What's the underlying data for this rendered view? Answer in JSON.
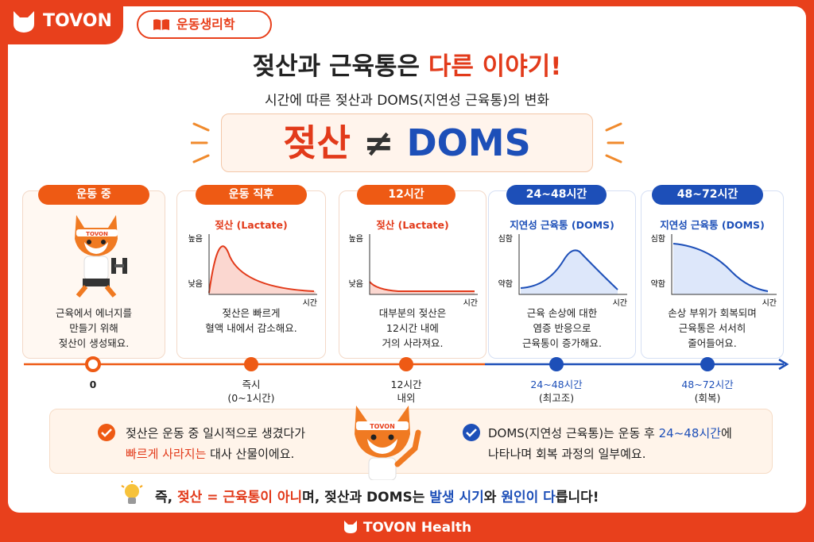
{
  "header": {
    "brand": "TOVON",
    "tag": "운동생리학"
  },
  "title": {
    "main": "젖산과 근육통은",
    "highlight": "다른 이야기!"
  },
  "subtitle": "시간에 따른 젖산과 DOMS(지연성 근육통)의 변화",
  "banner": {
    "left": "젖산",
    "symbol": "≠",
    "right": "DOMS"
  },
  "stages": [
    {
      "label": "운동 중",
      "description": [
        "근육에서 에너지를",
        "만들기 위해",
        "젖산이 생성돼요."
      ],
      "time": [
        "0"
      ]
    },
    {
      "label": "운동 직후",
      "chart_title": "젖산 (Lactate)",
      "y_labels": [
        "높음",
        "낮음"
      ],
      "x_label": "시간",
      "description": [
        "젖산은 빠르게",
        "혈액 내에서 감소해요."
      ],
      "time": [
        "즉시",
        "(0~1시간)"
      ]
    },
    {
      "label": "12시간",
      "chart_title": "젖산 (Lactate)",
      "y_labels": [
        "높음",
        "낮음"
      ],
      "x_label": "시간",
      "description": [
        "대부분의 젖산은",
        "12시간 내에",
        "거의 사라져요."
      ],
      "time": [
        "12시간",
        "내외"
      ]
    },
    {
      "label": "24~48시간",
      "chart_title": "지연성 근육통 (DOMS)",
      "y_labels": [
        "심함",
        "약함"
      ],
      "x_label": "시간",
      "description": [
        "근육 손상에 대한",
        "염증 반응으로",
        "근육통이 증가해요."
      ],
      "time": [
        "24~48시간",
        "(최고조)"
      ]
    },
    {
      "label": "48~72시간",
      "chart_title": "지연성 근육통 (DOMS)",
      "y_labels": [
        "심함",
        "약함"
      ],
      "x_label": "시간",
      "description": [
        "손상 부위가 회복되며",
        "근육통은 서서히",
        "줄어들어요."
      ],
      "time": [
        "48~72시간",
        "(회복)"
      ]
    }
  ],
  "notes": [
    {
      "line1": "젖산은 운동 중 일시적으로 생겼다가",
      "line2_highlight": "빠르게 사라지는",
      "line2_rest": "대사 산물이에요."
    },
    {
      "line1_start": "DOMS(지연성 근육통)는 운동 후",
      "line1_highlight": "24~48시간",
      "line1_end": "에",
      "line2": "나타나며 회복 과정의 일부예요."
    }
  ],
  "conclusion": {
    "start": "즉,",
    "red": "젖산 = 근육통이 아니",
    "middle": "며, 젖산과 DOMS는",
    "blue1": "발생 시기",
    "and": "와",
    "blue2": "원인이 다",
    "end": "릅니다!"
  },
  "footer": {
    "brand": "TOVON Health"
  }
}
